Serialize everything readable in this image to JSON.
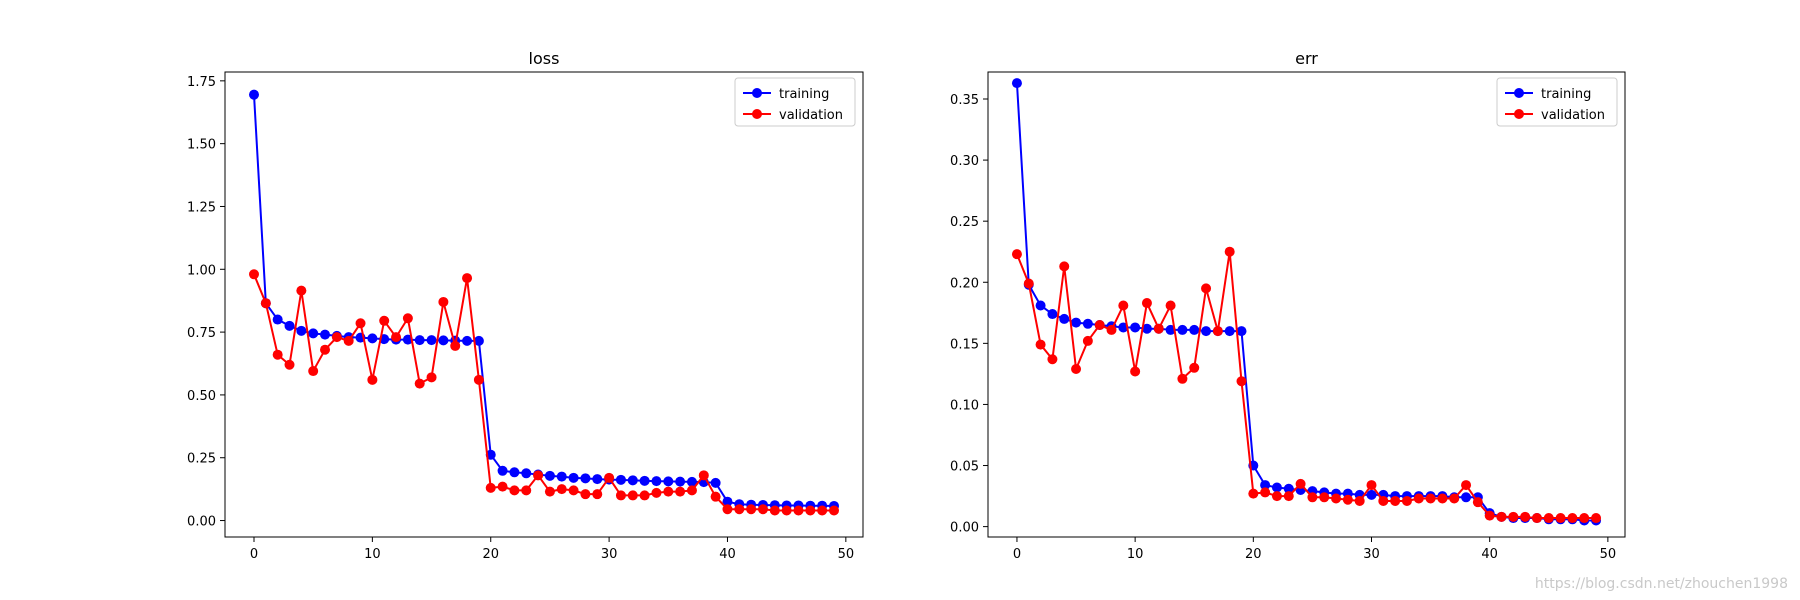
{
  "chart_data": [
    {
      "type": "line",
      "title": "loss",
      "xlabel": "",
      "ylabel": "",
      "xlim": [
        -2.45,
        51.45
      ],
      "ylim": [
        -0.0655,
        1.7852
      ],
      "xticks": [
        0,
        10,
        20,
        30,
        40,
        50
      ],
      "yticks": [
        0.0,
        0.25,
        0.5,
        0.75,
        1.0,
        1.25,
        1.5,
        1.75
      ],
      "ytick_labels": [
        "0.00",
        "0.25",
        "0.50",
        "0.75",
        "1.00",
        "1.25",
        "1.50",
        "1.75"
      ],
      "legend": "top-right",
      "grid": false,
      "x": [
        0,
        1,
        2,
        3,
        4,
        5,
        6,
        7,
        8,
        9,
        10,
        11,
        12,
        13,
        14,
        15,
        16,
        17,
        18,
        19,
        20,
        21,
        22,
        23,
        24,
        25,
        26,
        27,
        28,
        29,
        30,
        31,
        32,
        33,
        34,
        35,
        36,
        37,
        38,
        39,
        40,
        41,
        42,
        43,
        44,
        45,
        46,
        47,
        48,
        49
      ],
      "series": [
        {
          "name": "training",
          "color": "#0000ff",
          "values": [
            1.695,
            0.865,
            0.8,
            0.775,
            0.755,
            0.745,
            0.74,
            0.735,
            0.73,
            0.728,
            0.725,
            0.722,
            0.72,
            0.72,
            0.718,
            0.718,
            0.717,
            0.716,
            0.715,
            0.715,
            0.262,
            0.198,
            0.192,
            0.188,
            0.183,
            0.178,
            0.175,
            0.17,
            0.168,
            0.165,
            0.163,
            0.162,
            0.16,
            0.158,
            0.157,
            0.156,
            0.155,
            0.154,
            0.153,
            0.15,
            0.075,
            0.065,
            0.063,
            0.062,
            0.061,
            0.06,
            0.06,
            0.059,
            0.059,
            0.058
          ]
        },
        {
          "name": "validation",
          "color": "#ff0000",
          "values": [
            0.98,
            0.865,
            0.66,
            0.62,
            0.915,
            0.595,
            0.68,
            0.73,
            0.715,
            0.785,
            0.56,
            0.795,
            0.73,
            0.805,
            0.545,
            0.57,
            0.87,
            0.695,
            0.965,
            0.56,
            0.13,
            0.135,
            0.12,
            0.12,
            0.18,
            0.115,
            0.125,
            0.12,
            0.105,
            0.105,
            0.17,
            0.1,
            0.1,
            0.1,
            0.11,
            0.115,
            0.115,
            0.12,
            0.18,
            0.095,
            0.045,
            0.045,
            0.045,
            0.045,
            0.04,
            0.04,
            0.04,
            0.04,
            0.04,
            0.04
          ]
        }
      ]
    },
    {
      "type": "line",
      "title": "err",
      "xlabel": "",
      "ylabel": "",
      "xlim": [
        -2.45,
        51.45
      ],
      "ylim": [
        -0.0085,
        0.3721
      ],
      "xticks": [
        0,
        10,
        20,
        30,
        40,
        50
      ],
      "yticks": [
        0.0,
        0.05,
        0.1,
        0.15,
        0.2,
        0.25,
        0.3,
        0.35
      ],
      "ytick_labels": [
        "0.00",
        "0.05",
        "0.10",
        "0.15",
        "0.20",
        "0.25",
        "0.30",
        "0.35"
      ],
      "legend": "top-right",
      "grid": false,
      "x": [
        0,
        1,
        2,
        3,
        4,
        5,
        6,
        7,
        8,
        9,
        10,
        11,
        12,
        13,
        14,
        15,
        16,
        17,
        18,
        19,
        20,
        21,
        22,
        23,
        24,
        25,
        26,
        27,
        28,
        29,
        30,
        31,
        32,
        33,
        34,
        35,
        36,
        37,
        38,
        39,
        40,
        41,
        42,
        43,
        44,
        45,
        46,
        47,
        48,
        49
      ],
      "series": [
        {
          "name": "training",
          "color": "#0000ff",
          "values": [
            0.363,
            0.198,
            0.181,
            0.174,
            0.17,
            0.167,
            0.166,
            0.165,
            0.164,
            0.163,
            0.163,
            0.162,
            0.162,
            0.161,
            0.161,
            0.161,
            0.16,
            0.16,
            0.16,
            0.16,
            0.05,
            0.034,
            0.032,
            0.031,
            0.03,
            0.029,
            0.028,
            0.027,
            0.027,
            0.026,
            0.026,
            0.026,
            0.025,
            0.025,
            0.025,
            0.025,
            0.025,
            0.024,
            0.024,
            0.024,
            0.011,
            0.008,
            0.007,
            0.007,
            0.007,
            0.006,
            0.006,
            0.006,
            0.005,
            0.005
          ]
        },
        {
          "name": "validation",
          "color": "#ff0000",
          "values": [
            0.223,
            0.199,
            0.149,
            0.137,
            0.213,
            0.129,
            0.152,
            0.165,
            0.161,
            0.181,
            0.127,
            0.183,
            0.162,
            0.181,
            0.121,
            0.13,
            0.195,
            0.16,
            0.225,
            0.119,
            0.027,
            0.028,
            0.025,
            0.025,
            0.035,
            0.024,
            0.024,
            0.023,
            0.022,
            0.021,
            0.034,
            0.021,
            0.021,
            0.021,
            0.023,
            0.023,
            0.023,
            0.023,
            0.034,
            0.02,
            0.009,
            0.008,
            0.008,
            0.008,
            0.007,
            0.007,
            0.007,
            0.007,
            0.007,
            0.007
          ]
        }
      ]
    }
  ],
  "watermark": "https://blog.csdn.net/zhouchen1998"
}
